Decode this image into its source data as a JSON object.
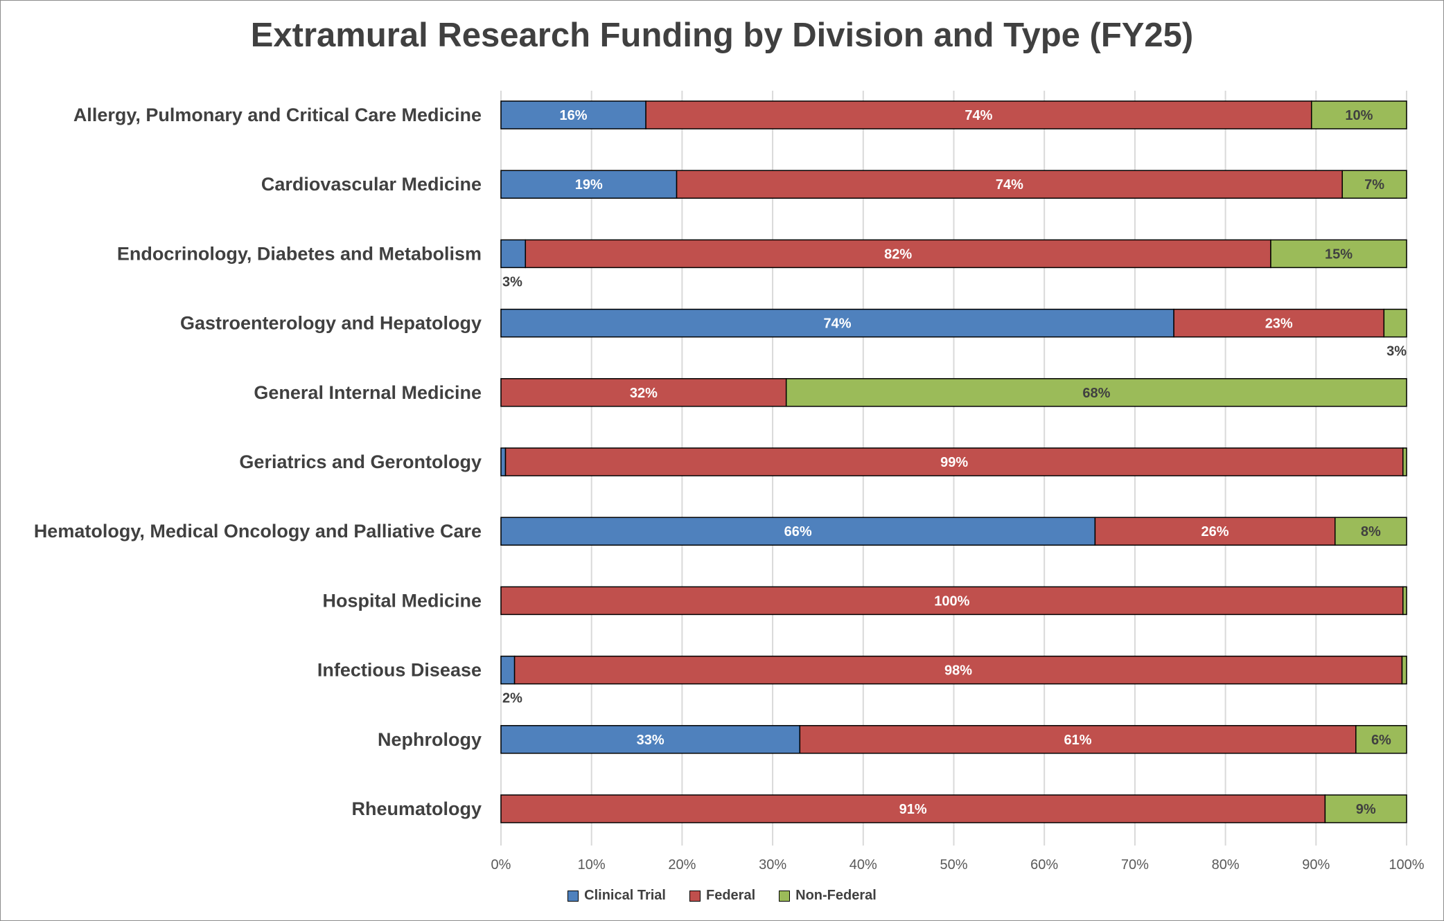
{
  "chart_data": {
    "type": "bar",
    "orientation": "horizontal",
    "stacked": "100%",
    "title": "Extramural Research Funding by Division and Type (FY25)",
    "categories": [
      "Allergy, Pulmonary and Critical Care Medicine",
      "Cardiovascular Medicine",
      "Endocrinology, Diabetes and Metabolism",
      "Gastroenterology and Hepatology",
      "General Internal Medicine",
      "Geriatrics and Gerontology",
      "Hematology, Medical Oncology and Palliative Care",
      "Hospital Medicine",
      "Infectious Disease",
      "Nephrology",
      "Rheumatology"
    ],
    "series": [
      {
        "name": "Clinical Trial",
        "color": "#4f81bd",
        "label_color": "#ffffff",
        "values": [
          16,
          19.4,
          2.7,
          74.3,
          0,
          0.5,
          65.6,
          0,
          1.5,
          33,
          0
        ],
        "labels": [
          "16%",
          "19%",
          "3%",
          "74%",
          null,
          null,
          "66%",
          null,
          "2%",
          "33%",
          null
        ]
      },
      {
        "name": "Federal",
        "color": "#c0504d",
        "label_color": "#ffffff",
        "values": [
          73.5,
          73.5,
          82.3,
          23.2,
          31.5,
          99.1,
          26.5,
          99.6,
          98,
          61.4,
          91
        ],
        "labels": [
          "74%",
          "74%",
          "82%",
          "23%",
          "32%",
          "99%",
          "26%",
          "100%",
          "98%",
          "61%",
          "91%"
        ]
      },
      {
        "name": "Non-Federal",
        "color": "#9bbb59",
        "label_color": "#404040",
        "values": [
          10.5,
          7.1,
          15,
          2.5,
          68.5,
          0.4,
          7.9,
          0.4,
          0.5,
          5.6,
          9
        ],
        "labels": [
          "10%",
          "7%",
          "15%",
          "3%",
          "68%",
          null,
          "8%",
          null,
          null,
          "6%",
          "9%"
        ]
      }
    ],
    "xlim": [
      0,
      100
    ],
    "x_ticks": [
      "0%",
      "10%",
      "20%",
      "30%",
      "40%",
      "50%",
      "60%",
      "70%",
      "80%",
      "90%",
      "100%"
    ],
    "grid": "vertical",
    "legend": "bottom"
  }
}
